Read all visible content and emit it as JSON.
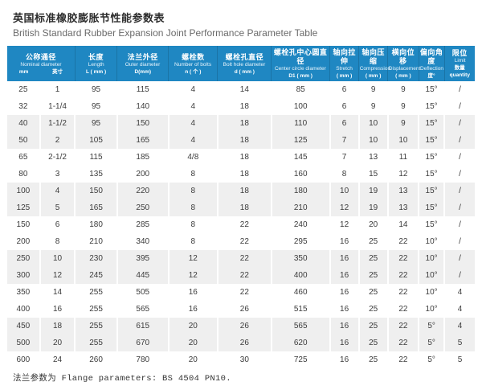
{
  "page": {
    "title_zh": "英国标准橡胶膨胀节性能参数表",
    "title_en": "British Standard Rubber Expansion Joint Performance Parameter Table",
    "footer_note": "法兰参数为 Flange parameters: BS 4504 PN10."
  },
  "colors": {
    "header_bg": "#1f87c2",
    "header_text": "#ffffff",
    "alt_row_bg": "#efefef",
    "body_text": "#3c3c3c"
  },
  "table": {
    "header": {
      "nominal": {
        "zh": "公称通径",
        "en": "Nominal diameter",
        "unit_mm": "mm",
        "unit_inch": "英寸"
      },
      "columns": [
        {
          "zh": "长度",
          "en": "Length",
          "unit": "L ( mm )"
        },
        {
          "zh": "法兰外径",
          "en": "Outer diameter",
          "unit": "D(mm)"
        },
        {
          "zh": "螺栓数",
          "en": "Number of bolts",
          "unit": "n ( 个 )"
        },
        {
          "zh": "螺栓孔直径",
          "en": "Bolt hole diameter",
          "unit": "d ( mm )"
        },
        {
          "zh": "螺栓孔中心圆直径",
          "en": "Center circle diameter",
          "unit": "D1 ( mm )"
        },
        {
          "zh": "轴向拉伸",
          "en": "Stretch",
          "unit": "( mm )"
        },
        {
          "zh": "轴向压缩",
          "en": "Compression",
          "unit": "( mm )"
        },
        {
          "zh": "横向位移",
          "en": "Displacement",
          "unit": "( mm )"
        },
        {
          "zh": "偏向角度",
          "en": "Deflection",
          "unit": "度°"
        },
        {
          "zh": "限位",
          "en": "Limit",
          "unit": "数量 quantity"
        }
      ]
    },
    "rows": [
      [
        "25",
        "1",
        "95",
        "115",
        "4",
        "14",
        "85",
        "6",
        "9",
        "9",
        "15°",
        "/"
      ],
      [
        "32",
        "1-1/4",
        "95",
        "140",
        "4",
        "18",
        "100",
        "6",
        "9",
        "9",
        "15°",
        "/"
      ],
      [
        "40",
        "1-1/2",
        "95",
        "150",
        "4",
        "18",
        "110",
        "6",
        "10",
        "9",
        "15°",
        "/"
      ],
      [
        "50",
        "2",
        "105",
        "165",
        "4",
        "18",
        "125",
        "7",
        "10",
        "10",
        "15°",
        "/"
      ],
      [
        "65",
        "2-1/2",
        "115",
        "185",
        "4/8",
        "18",
        "145",
        "7",
        "13",
        "11",
        "15°",
        "/"
      ],
      [
        "80",
        "3",
        "135",
        "200",
        "8",
        "18",
        "160",
        "8",
        "15",
        "12",
        "15°",
        "/"
      ],
      [
        "100",
        "4",
        "150",
        "220",
        "8",
        "18",
        "180",
        "10",
        "19",
        "13",
        "15°",
        "/"
      ],
      [
        "125",
        "5",
        "165",
        "250",
        "8",
        "18",
        "210",
        "12",
        "19",
        "13",
        "15°",
        "/"
      ],
      [
        "150",
        "6",
        "180",
        "285",
        "8",
        "22",
        "240",
        "12",
        "20",
        "14",
        "15°",
        "/"
      ],
      [
        "200",
        "8",
        "210",
        "340",
        "8",
        "22",
        "295",
        "16",
        "25",
        "22",
        "10°",
        "/"
      ],
      [
        "250",
        "10",
        "230",
        "395",
        "12",
        "22",
        "350",
        "16",
        "25",
        "22",
        "10°",
        "/"
      ],
      [
        "300",
        "12",
        "245",
        "445",
        "12",
        "22",
        "400",
        "16",
        "25",
        "22",
        "10°",
        "/"
      ],
      [
        "350",
        "14",
        "255",
        "505",
        "16",
        "22",
        "460",
        "16",
        "25",
        "22",
        "10°",
        "4"
      ],
      [
        "400",
        "16",
        "255",
        "565",
        "16",
        "26",
        "515",
        "16",
        "25",
        "22",
        "10°",
        "4"
      ],
      [
        "450",
        "18",
        "255",
        "615",
        "20",
        "26",
        "565",
        "16",
        "25",
        "22",
        "5°",
        "4"
      ],
      [
        "500",
        "20",
        "255",
        "670",
        "20",
        "26",
        "620",
        "16",
        "25",
        "22",
        "5°",
        "5"
      ],
      [
        "600",
        "24",
        "260",
        "780",
        "20",
        "30",
        "725",
        "16",
        "25",
        "22",
        "5°",
        "5"
      ]
    ]
  }
}
